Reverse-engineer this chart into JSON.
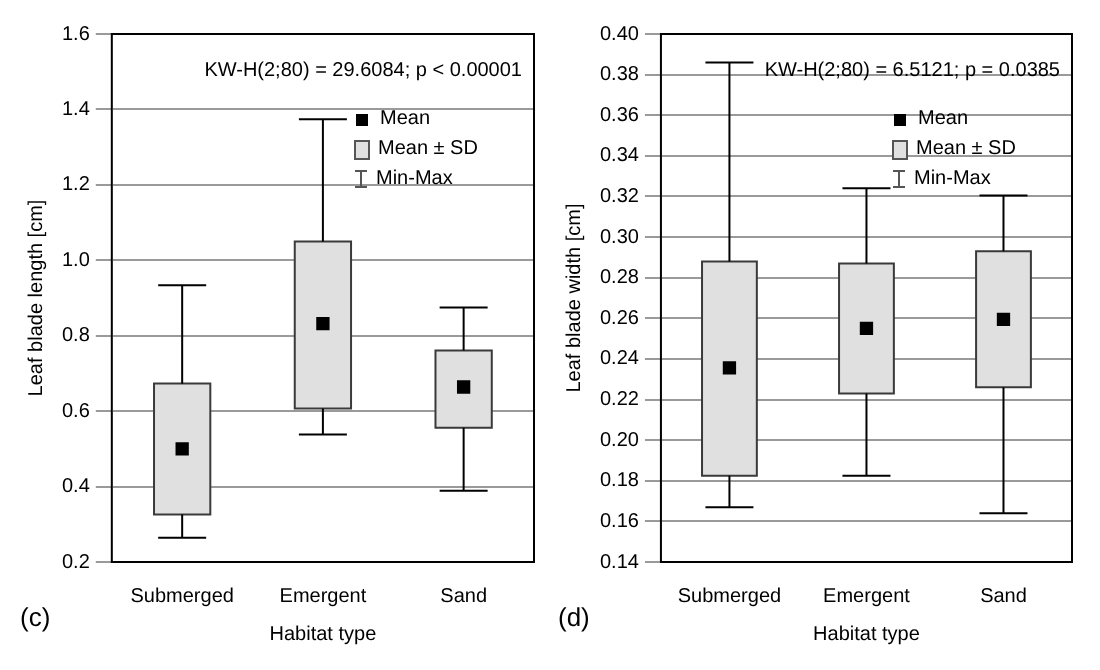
{
  "chart_data": [
    {
      "type": "box",
      "xlabel": "Habitat type",
      "ylabel": "Leaf blade length [cm]",
      "categories": [
        "Submerged",
        "Emergent",
        "Sand"
      ],
      "color": "#e0e0e0",
      "boxes": [
        {
          "low": 0.264,
          "q1": 0.326,
          "mean": 0.5,
          "q3": 0.673,
          "high": 0.934
        },
        {
          "low": 0.538,
          "q1": 0.607,
          "mean": 0.832,
          "q3": 1.05,
          "high": 1.374
        },
        {
          "low": 0.389,
          "q1": 0.556,
          "mean": 0.664,
          "q3": 0.761,
          "high": 0.875
        }
      ],
      "ylim": [
        0.2,
        1.6
      ],
      "yticks": [
        0.2,
        0.4,
        0.6,
        0.8,
        {
          "value": 1,
          "label": "1.0"
        },
        1.2,
        1.4,
        1.6
      ],
      "grid": "y",
      "annotations": [
        "KW-H(2;80) = 29.6084; p < 0.00001",
        "Mean",
        "Mean ± SD",
        "Min-Max",
        "(c)"
      ]
    },
    {
      "type": "box",
      "xlabel": "Habitat type",
      "ylabel": "Leaf blade width [cm]",
      "categories": [
        "Submerged",
        "Emergent",
        "Sand"
      ],
      "color": "#e0e0e0",
      "boxes": [
        {
          "low": 0.167,
          "q1": 0.1825,
          "mean": 0.2356,
          "q3": 0.288,
          "high": 0.386
        },
        {
          "low": 0.1825,
          "q1": 0.223,
          "mean": 0.255,
          "q3": 0.287,
          "high": 0.324
        },
        {
          "low": 0.164,
          "q1": 0.226,
          "mean": 0.2595,
          "q3": 0.293,
          "high": 0.3205
        }
      ],
      "ylim": [
        0.14,
        0.4
      ],
      "yticks": [
        0.14,
        0.16,
        0.18,
        {
          "value": 0.2,
          "label": "0.20"
        },
        0.22,
        0.24,
        0.26,
        0.28,
        {
          "value": 0.3,
          "label": "0.30"
        },
        0.32,
        0.34,
        0.36,
        0.38,
        {
          "value": 0.4,
          "label": "0.40"
        }
      ],
      "grid": "y",
      "annotations": [
        "KW-H(2;80) = 6.5121; p = 0.0385",
        "Mean",
        "Mean ± SD",
        "Min-Max",
        "(d)"
      ]
    }
  ]
}
